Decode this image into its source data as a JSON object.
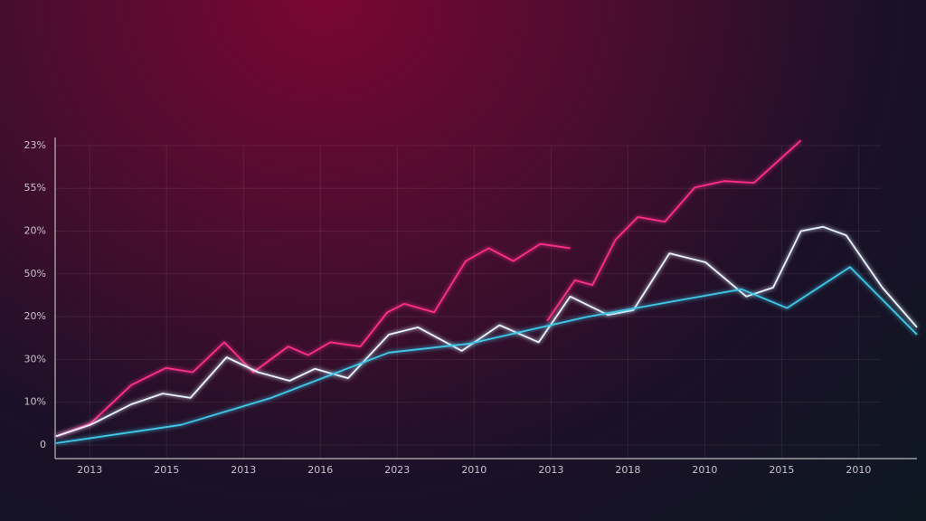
{
  "chart_data": {
    "type": "line",
    "xlim": [
      -0.45,
      10.76
    ],
    "xticks": [
      {
        "value": 0,
        "label": "2013"
      },
      {
        "value": 1,
        "label": "2015"
      },
      {
        "value": 2,
        "label": "2013"
      },
      {
        "value": 3,
        "label": "2016"
      },
      {
        "value": 4,
        "label": "2023"
      },
      {
        "value": 5,
        "label": "2010"
      },
      {
        "value": 6,
        "label": "2013"
      },
      {
        "value": 7,
        "label": "2018"
      },
      {
        "value": 8,
        "label": "2010"
      },
      {
        "value": 9,
        "label": "2015"
      },
      {
        "value": 10,
        "label": "2010"
      }
    ],
    "ylim": [
      -3.2,
      72
    ],
    "yticks": [
      0,
      {
        "value": 10,
        "label": "10%"
      },
      {
        "value": 20,
        "label": "30%"
      },
      {
        "value": 30,
        "label": "20%"
      },
      {
        "value": 40,
        "label": "50%"
      },
      {
        "value": 50,
        "label": "20%"
      },
      {
        "value": 60,
        "label": "55%"
      },
      {
        "value": 70,
        "label": "23%"
      }
    ],
    "grid": true,
    "series": [
      {
        "color": "#ff2d8a",
        "x": [
          -0.44,
          0.01,
          0.54,
          0.99,
          1.34,
          1.75,
          2.13,
          2.58,
          2.84,
          3.13,
          3.52,
          3.87,
          4.09,
          4.48,
          4.89,
          5.19,
          5.51,
          5.86,
          6.25,
          null,
          5.95,
          6.31,
          6.54,
          6.84,
          7.13,
          7.48,
          7.87,
          8.25,
          8.64,
          9.25
        ],
        "values": [
          2,
          5,
          14,
          18,
          17,
          24,
          17,
          23,
          21,
          24,
          23,
          31,
          33,
          31,
          43,
          46,
          43,
          47,
          46,
          null,
          29,
          38.5,
          37.4,
          48,
          53.3,
          52.2,
          60.2,
          61.7,
          61.3,
          71.2
        ]
      },
      {
        "color": "#e8f4ff",
        "x": [
          -0.44,
          0.01,
          0.54,
          0.95,
          1.31,
          1.78,
          2.19,
          2.6,
          2.93,
          3.36,
          3.89,
          4.27,
          4.84,
          5.33,
          5.84,
          6.25,
          6.74,
          7.07,
          7.54,
          8.01,
          8.54,
          8.89,
          9.25,
          9.54,
          9.84,
          10.31,
          10.76
        ],
        "values": [
          2,
          4.7,
          9.5,
          12,
          11,
          20.5,
          17,
          15,
          17.8,
          15.6,
          25.8,
          27.5,
          22,
          28,
          24,
          34.7,
          30.4,
          31.5,
          44.8,
          42.7,
          34.7,
          36.8,
          50,
          51,
          49,
          36.8,
          27.5
        ]
      },
      {
        "color": "#3fc8e8",
        "x": [
          -0.44,
          1.19,
          2.36,
          3.89,
          4.95,
          6.48,
          7.78,
          8.48,
          9.07,
          9.89,
          10.76
        ],
        "values": [
          0.4,
          4.7,
          11,
          21.6,
          23.7,
          30,
          34.2,
          36.4,
          32,
          41.6,
          25.8
        ]
      }
    ]
  }
}
